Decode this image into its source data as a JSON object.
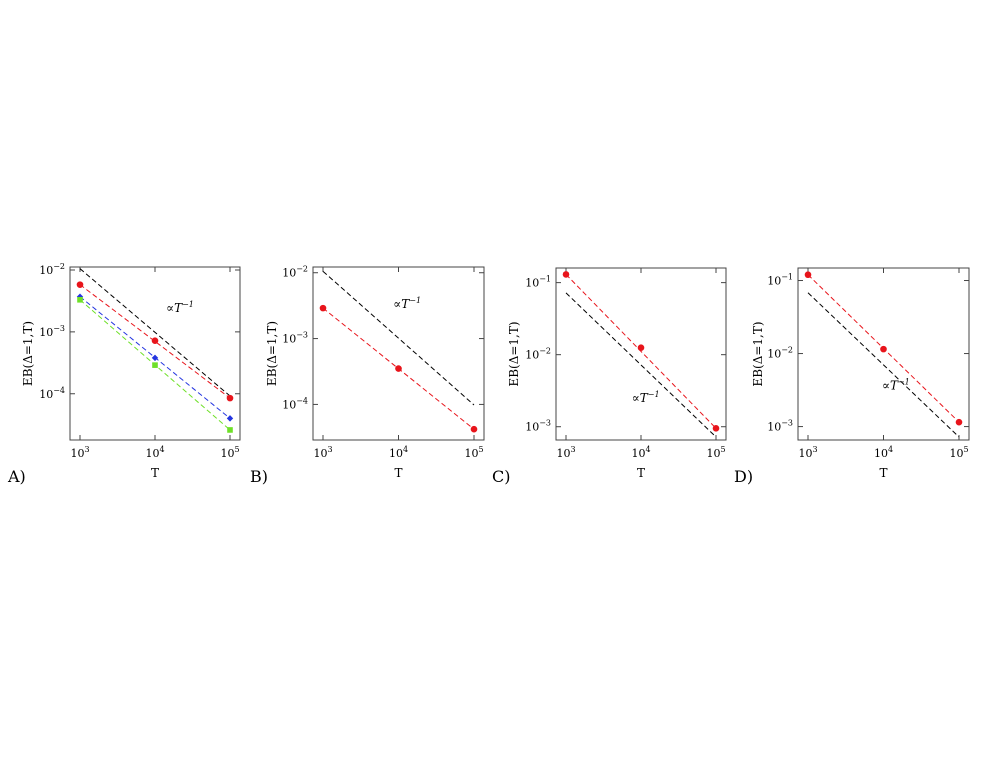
{
  "chart_data": [
    {
      "type": "line",
      "panel_label": "A)",
      "xlabel": "T",
      "ylabel": "EB(Δ=1,T)",
      "x_scale": "log",
      "y_scale": "log",
      "xlim": [
        1000,
        100000
      ],
      "ylim": [
        2e-05,
        0.01
      ],
      "x_ticks": [
        {
          "base": "10",
          "exp": "3",
          "value": 1000
        },
        {
          "base": "10",
          "exp": "4",
          "value": 10000
        },
        {
          "base": "10",
          "exp": "5",
          "value": 100000
        }
      ],
      "y_ticks": [
        {
          "base": "10",
          "exp": "−2",
          "value": 0.01
        },
        {
          "base": "10",
          "exp": "−3",
          "value": 0.001
        },
        {
          "base": "10",
          "exp": "−4",
          "value": 0.0001
        }
      ],
      "series": [
        {
          "color": "#e8141b",
          "marker": "circle",
          "points": [
            [
              1000,
              0.0058
            ],
            [
              10000,
              0.00072
            ],
            [
              100000,
              8.5e-05
            ]
          ],
          "fit": [
            [
              1000,
              0.0058
            ],
            [
              100000,
              8.5e-05
            ]
          ]
        },
        {
          "color": "#2435e0",
          "marker": "diamond",
          "points": [
            [
              1000,
              0.0037
            ],
            [
              10000,
              0.00038
            ],
            [
              100000,
              4e-05
            ]
          ],
          "fit": [
            [
              1000,
              0.0037
            ],
            [
              100000,
              4e-05
            ]
          ]
        },
        {
          "color": "#6ee027",
          "marker": "square",
          "points": [
            [
              1000,
              0.0033
            ],
            [
              10000,
              0.00029
            ],
            [
              100000,
              2.6e-05
            ]
          ],
          "fit": [
            [
              1000,
              0.0033
            ],
            [
              100000,
              2.6e-05
            ]
          ]
        }
      ],
      "reference_line": {
        "color": "#000000",
        "points": [
          [
            1000,
            0.0105
          ],
          [
            100000,
            9.2e-05
          ]
        ]
      },
      "annotation": {
        "prefix": "∝",
        "base": "T",
        "exp": "−1",
        "at": [
          14000,
          0.0021
        ]
      }
    },
    {
      "type": "line",
      "panel_label": "B)",
      "xlabel": "T",
      "ylabel": "EB(Δ=1,T)",
      "x_scale": "log",
      "y_scale": "log",
      "xlim": [
        1000,
        100000
      ],
      "ylim": [
        3.2e-05,
        0.011
      ],
      "x_ticks": [
        {
          "base": "10",
          "exp": "3",
          "value": 1000
        },
        {
          "base": "10",
          "exp": "4",
          "value": 10000
        },
        {
          "base": "10",
          "exp": "5",
          "value": 100000
        }
      ],
      "y_ticks": [
        {
          "base": "10",
          "exp": "−2",
          "value": 0.01
        },
        {
          "base": "10",
          "exp": "−3",
          "value": 0.001
        },
        {
          "base": "10",
          "exp": "−4",
          "value": 0.0001
        }
      ],
      "series": [
        {
          "color": "#e8141b",
          "marker": "circle",
          "points": [
            [
              1000,
              0.0029
            ],
            [
              10000,
              0.00035
            ],
            [
              100000,
              4.2e-05
            ]
          ],
          "fit": [
            [
              1000,
              0.0029
            ],
            [
              100000,
              4.2e-05
            ]
          ]
        }
      ],
      "reference_line": {
        "color": "#000000",
        "points": [
          [
            1000,
            0.0105
          ],
          [
            100000,
            9.8e-05
          ]
        ]
      },
      "annotation": {
        "prefix": "∝",
        "base": "T",
        "exp": "−1",
        "at": [
          8500,
          0.0029
        ]
      }
    },
    {
      "type": "line",
      "panel_label": "C)",
      "xlabel": "T",
      "ylabel": "EB(Δ=1,T)",
      "x_scale": "log",
      "y_scale": "log",
      "xlim": [
        1000,
        100000
      ],
      "ylim": [
        0.00072,
        0.145
      ],
      "x_ticks": [
        {
          "base": "10",
          "exp": "3",
          "value": 1000
        },
        {
          "base": "10",
          "exp": "4",
          "value": 10000
        },
        {
          "base": "10",
          "exp": "5",
          "value": 100000
        }
      ],
      "y_ticks": [
        {
          "base": "10",
          "exp": "−1",
          "value": 0.1
        },
        {
          "base": "10",
          "exp": "−2",
          "value": 0.01
        },
        {
          "base": "10",
          "exp": "−3",
          "value": 0.001
        }
      ],
      "series": [
        {
          "color": "#e8141b",
          "marker": "circle",
          "points": [
            [
              1000,
              0.13
            ],
            [
              10000,
              0.0125
            ],
            [
              100000,
              0.00095
            ]
          ],
          "fit": [
            [
              1000,
              0.13
            ],
            [
              100000,
              0.00095
            ]
          ]
        }
      ],
      "reference_line": {
        "color": "#000000",
        "points": [
          [
            1000,
            0.072
          ],
          [
            100000,
            0.00072
          ]
        ]
      },
      "annotation": {
        "prefix": "∝",
        "base": "T",
        "exp": "−1",
        "at": [
          7500,
          0.0022
        ]
      }
    },
    {
      "type": "line",
      "panel_label": "D)",
      "xlabel": "T",
      "ylabel": "EB(Δ=1,T)",
      "x_scale": "log",
      "y_scale": "log",
      "xlim": [
        1000,
        100000
      ],
      "ylim": [
        0.00072,
        0.135
      ],
      "x_ticks": [
        {
          "base": "10",
          "exp": "3",
          "value": 1000
        },
        {
          "base": "10",
          "exp": "4",
          "value": 10000
        },
        {
          "base": "10",
          "exp": "5",
          "value": 100000
        }
      ],
      "y_ticks": [
        {
          "base": "10",
          "exp": "−1",
          "value": 0.1
        },
        {
          "base": "10",
          "exp": "−2",
          "value": 0.01
        },
        {
          "base": "10",
          "exp": "−3",
          "value": 0.001
        }
      ],
      "series": [
        {
          "color": "#e8141b",
          "marker": "circle",
          "points": [
            [
              1000,
              0.12
            ],
            [
              10000,
              0.0115
            ],
            [
              100000,
              0.00115
            ]
          ],
          "fit": [
            [
              1000,
              0.12
            ],
            [
              100000,
              0.00115
            ]
          ]
        }
      ],
      "reference_line": {
        "color": "#000000",
        "points": [
          [
            1000,
            0.068
          ],
          [
            100000,
            0.00072
          ]
        ]
      },
      "annotation": {
        "prefix": "∝",
        "base": "T",
        "exp": "−1",
        "at": [
          9500,
          0.0032
        ]
      }
    }
  ]
}
